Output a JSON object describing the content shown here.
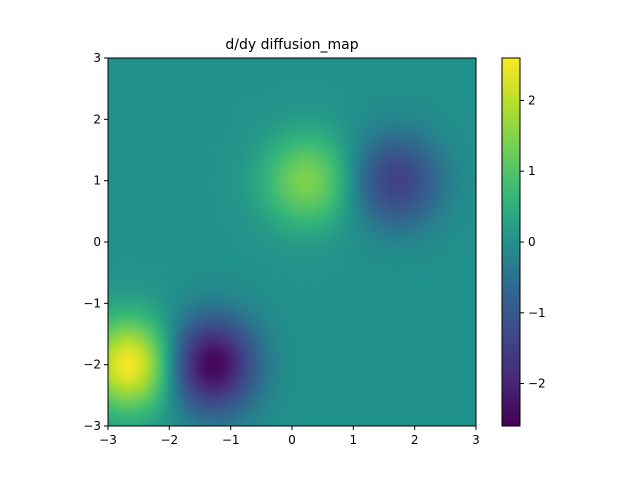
{
  "chart_data": {
    "type": "heatmap",
    "title": "d/dy diffusion_map",
    "xlabel": "",
    "ylabel": "",
    "xlim": [
      -3,
      3
    ],
    "ylim": [
      -3,
      3
    ],
    "x_ticks": [
      -3,
      -2,
      -1,
      0,
      1,
      2,
      3
    ],
    "y_ticks": [
      -3,
      -2,
      -1,
      0,
      1,
      2,
      3
    ],
    "x_tick_labels": [
      "−3",
      "−2",
      "−1",
      "0",
      "1",
      "2",
      "3"
    ],
    "y_tick_labels": [
      "−3",
      "−2",
      "−1",
      "0",
      "1",
      "2",
      "3"
    ],
    "colormap": "viridis",
    "colorbar": {
      "vmin": -2.6,
      "vmax": 2.6,
      "ticks": [
        -2,
        -1,
        0,
        1,
        2
      ],
      "tick_labels": [
        "−2",
        "−1",
        "0",
        "1",
        "2"
      ]
    },
    "features": [
      {
        "x": -2.65,
        "y": -2.0,
        "value": 2.55
      },
      {
        "x": -1.3,
        "y": -2.0,
        "value": -2.55
      },
      {
        "x": 0.25,
        "y": 1.0,
        "value": 1.45
      },
      {
        "x": 1.7,
        "y": 1.0,
        "value": -1.45
      }
    ],
    "grid": false
  }
}
